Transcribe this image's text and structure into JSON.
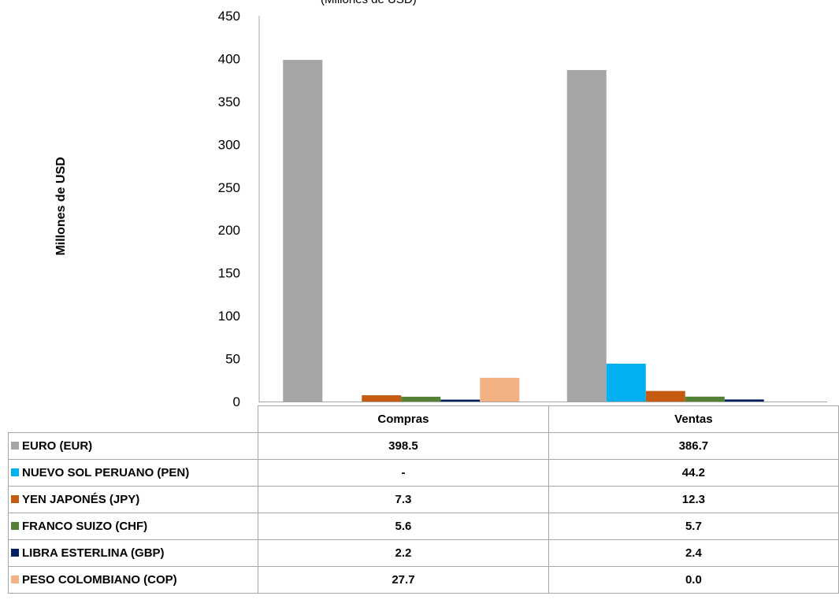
{
  "title_fragment": "(Millones de USD)",
  "chart_data": {
    "type": "bar",
    "title": "",
    "xlabel": "",
    "ylabel": "Millones de USD",
    "ylim": [
      0,
      450
    ],
    "yticks": [
      "0",
      "50",
      "100",
      "150",
      "200",
      "250",
      "300",
      "350",
      "400",
      "450"
    ],
    "categories": [
      "Compras",
      "Ventas"
    ],
    "grid": false,
    "legend": "data table below chart",
    "series": [
      {
        "name": "EURO  (EUR)",
        "color": "#a5a5a5",
        "values": [
          398.5,
          386.7
        ],
        "labels": [
          "398.5",
          "386.7"
        ]
      },
      {
        "name": "NUEVO SOL PERUANO (PEN)",
        "color": "#00b0f0",
        "values": [
          0,
          44.2
        ],
        "labels": [
          "-",
          "44.2"
        ]
      },
      {
        "name": "YEN JAPONÉS  (JPY)",
        "color": "#c55a11",
        "values": [
          7.3,
          12.3
        ],
        "labels": [
          "7.3",
          "12.3"
        ]
      },
      {
        "name": "FRANCO SUIZO  (CHF)",
        "color": "#548235",
        "values": [
          5.6,
          5.7
        ],
        "labels": [
          "5.6",
          "5.7"
        ]
      },
      {
        "name": "LIBRA ESTERLINA  (GBP)",
        "color": "#002060",
        "values": [
          2.2,
          2.4
        ],
        "labels": [
          "2.2",
          "2.4"
        ]
      },
      {
        "name": "PESO COLOMBIANO (COP)",
        "color": "#f4b183",
        "values": [
          27.7,
          0.0
        ],
        "labels": [
          "27.7",
          "0.0"
        ]
      }
    ]
  }
}
